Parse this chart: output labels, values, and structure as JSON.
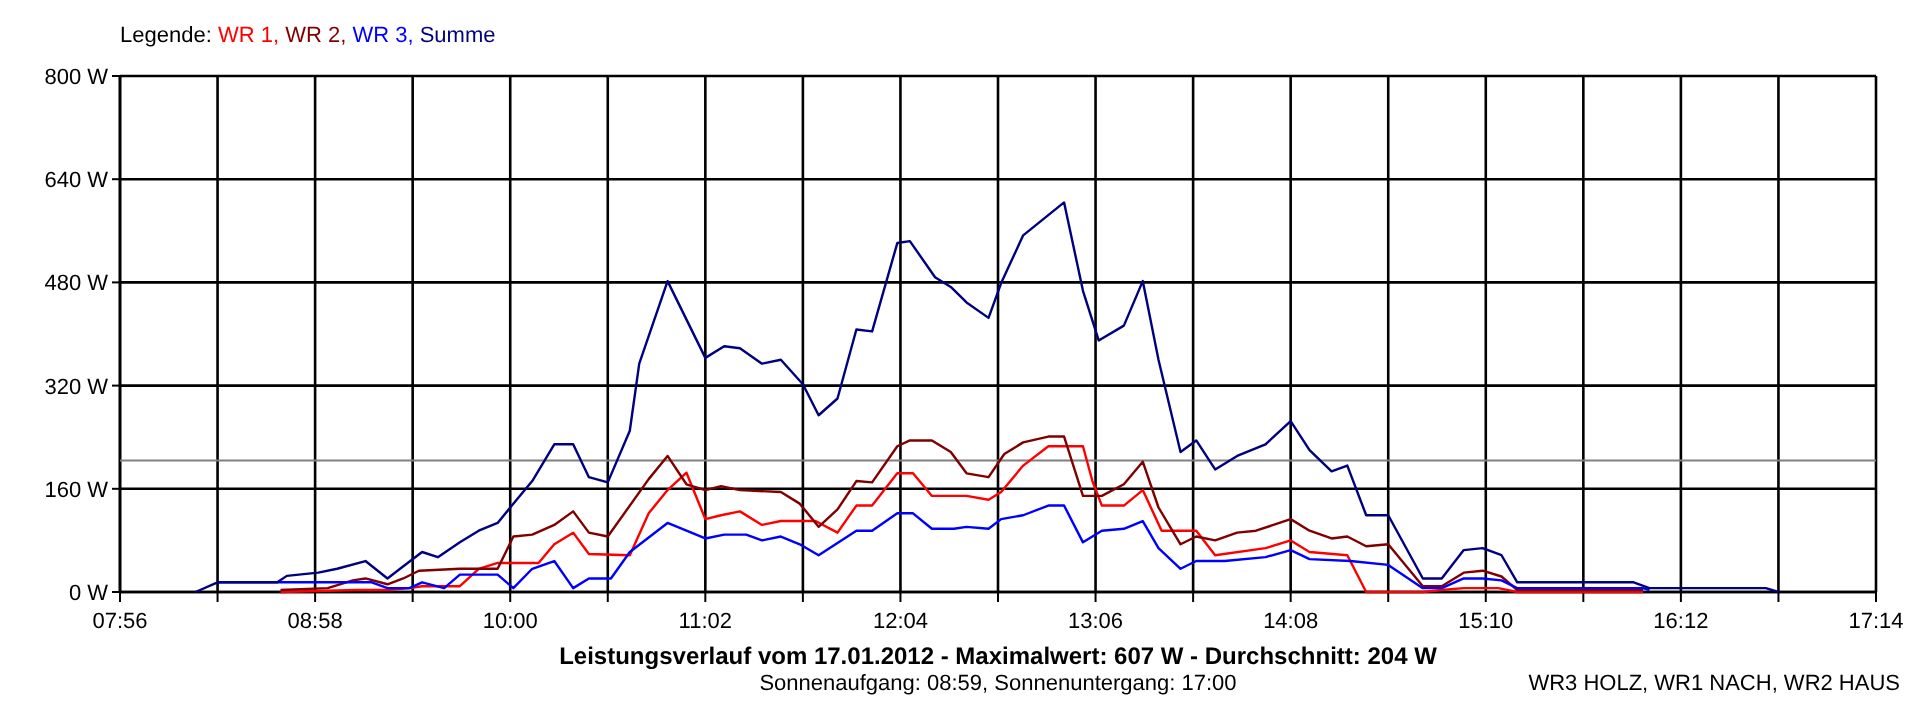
{
  "chart_data": {
    "type": "line",
    "title": "Leistungsverlauf vom 17.01.2012 - Maximalwert: 607 W - Durchschnitt: 204 W",
    "subtitle": "Sonnenaufgang: 08:59, Sonnenuntergang: 17:00",
    "annotations": [
      "WR3 HOLZ, WR1 NACH, WR2 HAUS"
    ],
    "legend_title": "Legende:",
    "legend": "top left",
    "grid": true,
    "line_style": "solid",
    "xlim": [
      "2012-01-17T07:56",
      "2012-01-17T17:14"
    ],
    "xticks": [
      {
        "value": "2012-01-17T07:56",
        "label": "07:56"
      },
      {
        "value": "2012-01-17T08:27",
        "label": null
      },
      {
        "value": "2012-01-17T08:58",
        "label": "08:58"
      },
      {
        "value": "2012-01-17T09:29",
        "label": null
      },
      {
        "value": "2012-01-17T10:00",
        "label": "10:00"
      },
      {
        "value": "2012-01-17T10:31",
        "label": null
      },
      {
        "value": "2012-01-17T11:02",
        "label": "11:02"
      },
      {
        "value": "2012-01-17T11:33",
        "label": null
      },
      {
        "value": "2012-01-17T12:04",
        "label": "12:04"
      },
      {
        "value": "2012-01-17T12:35",
        "label": null
      },
      {
        "value": "2012-01-17T13:06",
        "label": "13:06"
      },
      {
        "value": "2012-01-17T13:37",
        "label": null
      },
      {
        "value": "2012-01-17T14:08",
        "label": "14:08"
      },
      {
        "value": "2012-01-17T14:39",
        "label": null
      },
      {
        "value": "2012-01-17T15:10",
        "label": "15:10"
      },
      {
        "value": "2012-01-17T15:41",
        "label": null
      },
      {
        "value": "2012-01-17T16:12",
        "label": "16:12"
      },
      {
        "value": "2012-01-17T16:43",
        "label": null
      },
      {
        "value": "2012-01-17T17:14",
        "label": "17:14"
      }
    ],
    "ylim": [
      0,
      800
    ],
    "yticks": [
      {
        "value": 0,
        "label": "0 W"
      },
      {
        "value": 160,
        "label": "160 W"
      },
      {
        "value": 320,
        "label": "320 W"
      },
      {
        "value": 480,
        "label": "480 W"
      },
      {
        "value": 640,
        "label": "640 W"
      },
      {
        "value": 800,
        "label": "800 W"
      }
    ],
    "ref_lines": [
      {
        "axis": "y",
        "value": 204,
        "color": "#808080"
      }
    ],
    "series": [
      {
        "name": "WR 1,",
        "color": "#ff0000",
        "x": [
          "2012-01-17T08:47",
          "2012-01-17T09:11",
          "2012-01-17T09:21",
          "2012-01-17T09:28",
          "2012-01-17T09:32",
          "2012-01-17T09:44",
          "2012-01-17T09:50",
          "2012-01-17T09:56",
          "2012-01-17T10:09",
          "2012-01-17T10:14",
          "2012-01-17T10:20",
          "2012-01-17T10:25",
          "2012-01-17T10:38",
          "2012-01-17T10:44",
          "2012-01-17T10:50",
          "2012-01-17T10:56",
          "2012-01-17T11:02",
          "2012-01-17T11:07",
          "2012-01-17T11:13",
          "2012-01-17T11:20",
          "2012-01-17T11:26",
          "2012-01-17T11:37",
          "2012-01-17T11:44",
          "2012-01-17T11:50",
          "2012-01-17T11:55",
          "2012-01-17T12:03",
          "2012-01-17T12:08",
          "2012-01-17T12:14",
          "2012-01-17T12:25",
          "2012-01-17T12:32",
          "2012-01-17T12:36",
          "2012-01-17T12:43",
          "2012-01-17T12:51",
          "2012-01-17T13:02",
          "2012-01-17T13:05",
          "2012-01-17T13:08",
          "2012-01-17T13:15",
          "2012-01-17T13:21",
          "2012-01-17T13:27",
          "2012-01-17T13:38",
          "2012-01-17T13:44",
          "2012-01-17T14:00",
          "2012-01-17T14:08",
          "2012-01-17T14:14",
          "2012-01-17T14:26",
          "2012-01-17T14:32",
          "2012-01-17T14:50",
          "2012-01-17T14:56",
          "2012-01-17T15:03",
          "2012-01-17T15:14",
          "2012-01-17T15:20",
          "2012-01-17T16:00"
        ],
        "values": [
          0,
          3,
          3,
          6,
          9,
          9,
          36,
          45,
          45,
          74,
          92,
          59,
          57,
          122,
          158,
          185,
          113,
          119,
          125,
          104,
          110,
          110,
          92,
          134,
          134,
          184,
          184,
          149,
          149,
          143,
          155,
          196,
          226,
          226,
          172,
          134,
          134,
          158,
          95,
          95,
          57,
          68,
          80,
          62,
          57,
          0,
          0,
          3,
          6,
          6,
          0,
          0
        ]
      },
      {
        "name": "WR 2,",
        "color": "#800000",
        "x": [
          "2012-01-17T08:47",
          "2012-01-17T09:02",
          "2012-01-17T09:10",
          "2012-01-17T09:14",
          "2012-01-17T09:21",
          "2012-01-17T09:26",
          "2012-01-17T09:31",
          "2012-01-17T09:44",
          "2012-01-17T09:56",
          "2012-01-17T10:01",
          "2012-01-17T10:07",
          "2012-01-17T10:14",
          "2012-01-17T10:20",
          "2012-01-17T10:25",
          "2012-01-17T10:31",
          "2012-01-17T10:44",
          "2012-01-17T10:50",
          "2012-01-17T10:56",
          "2012-01-17T11:02",
          "2012-01-17T11:07",
          "2012-01-17T11:13",
          "2012-01-17T11:26",
          "2012-01-17T11:32",
          "2012-01-17T11:38",
          "2012-01-17T11:44",
          "2012-01-17T11:50",
          "2012-01-17T11:55",
          "2012-01-17T12:03",
          "2012-01-17T12:07",
          "2012-01-17T12:14",
          "2012-01-17T12:20",
          "2012-01-17T12:25",
          "2012-01-17T12:32",
          "2012-01-17T12:37",
          "2012-01-17T12:43",
          "2012-01-17T12:51",
          "2012-01-17T12:56",
          "2012-01-17T13:02",
          "2012-01-17T13:08",
          "2012-01-17T13:15",
          "2012-01-17T13:21",
          "2012-01-17T13:26",
          "2012-01-17T13:33",
          "2012-01-17T13:38",
          "2012-01-17T13:44",
          "2012-01-17T13:51",
          "2012-01-17T13:57",
          "2012-01-17T14:08",
          "2012-01-17T14:14",
          "2012-01-17T14:21",
          "2012-01-17T14:26",
          "2012-01-17T14:32",
          "2012-01-17T14:39",
          "2012-01-17T14:50",
          "2012-01-17T14:56",
          "2012-01-17T15:03",
          "2012-01-17T15:09",
          "2012-01-17T15:15",
          "2012-01-17T15:20",
          "2012-01-17T16:00"
        ],
        "values": [
          3,
          6,
          18,
          21,
          12,
          21,
          33,
          36,
          36,
          86,
          89,
          104,
          125,
          92,
          86,
          175,
          211,
          167,
          158,
          164,
          158,
          155,
          137,
          101,
          128,
          172,
          170,
          226,
          235,
          235,
          217,
          184,
          178,
          214,
          232,
          241,
          241,
          149,
          149,
          167,
          202,
          131,
          74,
          86,
          80,
          92,
          95,
          113,
          95,
          83,
          86,
          71,
          74,
          9,
          9,
          30,
          33,
          24,
          3,
          3
        ]
      },
      {
        "name": "WR 3,",
        "color": "#0000ff",
        "x": [
          "2012-01-17T08:27",
          "2012-01-17T09:16",
          "2012-01-17T09:21",
          "2012-01-17T09:28",
          "2012-01-17T09:32",
          "2012-01-17T09:39",
          "2012-01-17T09:44",
          "2012-01-17T09:56",
          "2012-01-17T10:01",
          "2012-01-17T10:07",
          "2012-01-17T10:14",
          "2012-01-17T10:20",
          "2012-01-17T10:25",
          "2012-01-17T10:32",
          "2012-01-17T10:38",
          "2012-01-17T10:50",
          "2012-01-17T11:02",
          "2012-01-17T11:08",
          "2012-01-17T11:15",
          "2012-01-17T11:20",
          "2012-01-17T11:26",
          "2012-01-17T11:32",
          "2012-01-17T11:38",
          "2012-01-17T11:50",
          "2012-01-17T11:55",
          "2012-01-17T12:03",
          "2012-01-17T12:08",
          "2012-01-17T12:14",
          "2012-01-17T12:21",
          "2012-01-17T12:25",
          "2012-01-17T12:32",
          "2012-01-17T12:36",
          "2012-01-17T12:43",
          "2012-01-17T12:51",
          "2012-01-17T12:56",
          "2012-01-17T13:02",
          "2012-01-17T13:08",
          "2012-01-17T13:15",
          "2012-01-17T13:21",
          "2012-01-17T13:26",
          "2012-01-17T13:33",
          "2012-01-17T13:38",
          "2012-01-17T13:47",
          "2012-01-17T14:00",
          "2012-01-17T14:08",
          "2012-01-17T14:14",
          "2012-01-17T14:27",
          "2012-01-17T14:39",
          "2012-01-17T14:50",
          "2012-01-17T14:56",
          "2012-01-17T15:03",
          "2012-01-17T15:09",
          "2012-01-17T15:15",
          "2012-01-17T15:20",
          "2012-01-17T16:00",
          "2012-01-17T16:02"
        ],
        "values": [
          15,
          15,
          6,
          6,
          15,
          6,
          27,
          27,
          6,
          36,
          48,
          6,
          21,
          21,
          62,
          107,
          83,
          89,
          89,
          80,
          86,
          74,
          57,
          95,
          95,
          122,
          122,
          98,
          98,
          101,
          98,
          113,
          119,
          134,
          134,
          77,
          95,
          98,
          110,
          68,
          36,
          48,
          48,
          54,
          65,
          51,
          48,
          42,
          6,
          6,
          21,
          21,
          18,
          6,
          6,
          3
        ]
      },
      {
        "name": "Summe",
        "color": "#000080",
        "x": [
          "2012-01-17T08:20",
          "2012-01-17T08:27",
          "2012-01-17T08:46",
          "2012-01-17T08:49",
          "2012-01-17T08:59",
          "2012-01-17T09:05",
          "2012-01-17T09:14",
          "2012-01-17T09:21",
          "2012-01-17T09:25",
          "2012-01-17T09:32",
          "2012-01-17T09:37",
          "2012-01-17T09:44",
          "2012-01-17T09:50",
          "2012-01-17T09:56",
          "2012-01-17T10:00",
          "2012-01-17T10:07",
          "2012-01-17T10:14",
          "2012-01-17T10:20",
          "2012-01-17T10:25",
          "2012-01-17T10:31",
          "2012-01-17T10:38",
          "2012-01-17T10:41",
          "2012-01-17T10:50",
          "2012-01-17T11:02",
          "2012-01-17T11:08",
          "2012-01-17T11:13",
          "2012-01-17T11:20",
          "2012-01-17T11:26",
          "2012-01-17T11:33",
          "2012-01-17T11:38",
          "2012-01-17T11:44",
          "2012-01-17T11:50",
          "2012-01-17T11:55",
          "2012-01-17T12:03",
          "2012-01-17T12:07",
          "2012-01-17T12:15",
          "2012-01-17T12:20",
          "2012-01-17T12:25",
          "2012-01-17T12:32",
          "2012-01-17T12:36",
          "2012-01-17T12:43",
          "2012-01-17T12:56",
          "2012-01-17T13:02",
          "2012-01-17T13:07",
          "2012-01-17T13:15",
          "2012-01-17T13:21",
          "2012-01-17T13:26",
          "2012-01-17T13:33",
          "2012-01-17T13:38",
          "2012-01-17T13:44",
          "2012-01-17T13:51",
          "2012-01-17T14:00",
          "2012-01-17T14:08",
          "2012-01-17T14:14",
          "2012-01-17T14:21",
          "2012-01-17T14:26",
          "2012-01-17T14:32",
          "2012-01-17T14:39",
          "2012-01-17T14:50",
          "2012-01-17T14:56",
          "2012-01-17T15:03",
          "2012-01-17T15:09",
          "2012-01-17T15:15",
          "2012-01-17T15:20",
          "2012-01-17T15:57",
          "2012-01-17T16:02",
          "2012-01-17T16:39",
          "2012-01-17T16:43"
        ],
        "values": [
          0,
          15,
          15,
          25,
          30,
          36,
          48,
          21,
          36,
          62,
          54,
          77,
          95,
          107,
          131,
          172,
          229,
          229,
          178,
          170,
          250,
          354,
          482,
          363,
          381,
          378,
          354,
          360,
          322,
          274,
          300,
          407,
          404,
          541,
          544,
          488,
          473,
          449,
          425,
          479,
          553,
          604,
          467,
          390,
          413,
          482,
          360,
          217,
          235,
          190,
          211,
          229,
          265,
          220,
          187,
          196,
          119,
          119,
          21,
          21,
          65,
          68,
          57,
          15,
          15,
          6,
          6,
          0
        ]
      }
    ]
  }
}
